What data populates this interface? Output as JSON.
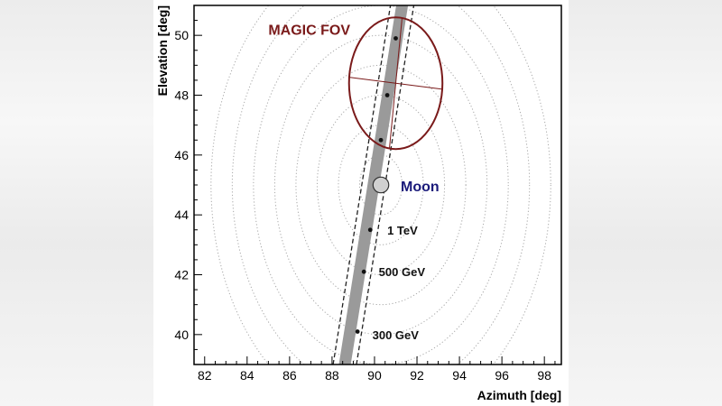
{
  "chart_data": {
    "type": "scatter",
    "xlabel": "Azimuth [deg]",
    "ylabel": "Elevation [deg]",
    "xlim": [
      81.5,
      98.8
    ],
    "ylim": [
      39.0,
      51.0
    ],
    "x_ticks": [
      82,
      84,
      86,
      88,
      90,
      92,
      94,
      96,
      98
    ],
    "y_ticks": [
      40,
      42,
      44,
      46,
      48,
      50
    ],
    "x_tick_labels": [
      "82",
      "84",
      "86",
      "88",
      "90",
      "92",
      "94",
      "96",
      "98"
    ],
    "y_tick_labels": [
      "40",
      "42",
      "44",
      "46",
      "48",
      "50"
    ],
    "grid": false,
    "moon": {
      "label": "Moon",
      "x": 90.3,
      "y": 45.0,
      "radius_deg": 0.25
    },
    "concentric_circles_radii_deg": [
      1,
      2,
      3,
      4,
      5,
      6,
      7,
      8
    ],
    "band": {
      "bottom_center": [
        88.6,
        39.0
      ],
      "top_center": [
        91.3,
        51.0
      ],
      "gray_half_width_deg": 0.28,
      "dashed_half_width_deg": 0.55
    },
    "points": [
      {
        "x": 91.0,
        "y": 49.9
      },
      {
        "x": 90.6,
        "y": 48.0
      },
      {
        "x": 90.3,
        "y": 46.5
      },
      {
        "x": 89.8,
        "y": 43.5
      },
      {
        "x": 89.5,
        "y": 42.1
      },
      {
        "x": 89.2,
        "y": 40.1
      }
    ],
    "energy_labels": [
      {
        "text": "1 TeV",
        "x": 90.6,
        "y": 43.5
      },
      {
        "text": "500 GeV",
        "x": 90.2,
        "y": 42.1
      },
      {
        "text": "300 GeV",
        "x": 89.9,
        "y": 40.0
      }
    ],
    "fov": {
      "label": "MAGIC FOV",
      "label_x": 85.0,
      "label_y": 50.2,
      "center": [
        91.0,
        48.4
      ],
      "radius_deg": 2.2,
      "color": "#7a1a1a"
    },
    "colors": {
      "band": "#9a9a9a",
      "dashed": "#222222",
      "circles": "#a8a8a8",
      "points": "#111111",
      "moon_label": "#1a1a7a",
      "fov": "#7a1a1a",
      "axis": "#000000"
    }
  }
}
